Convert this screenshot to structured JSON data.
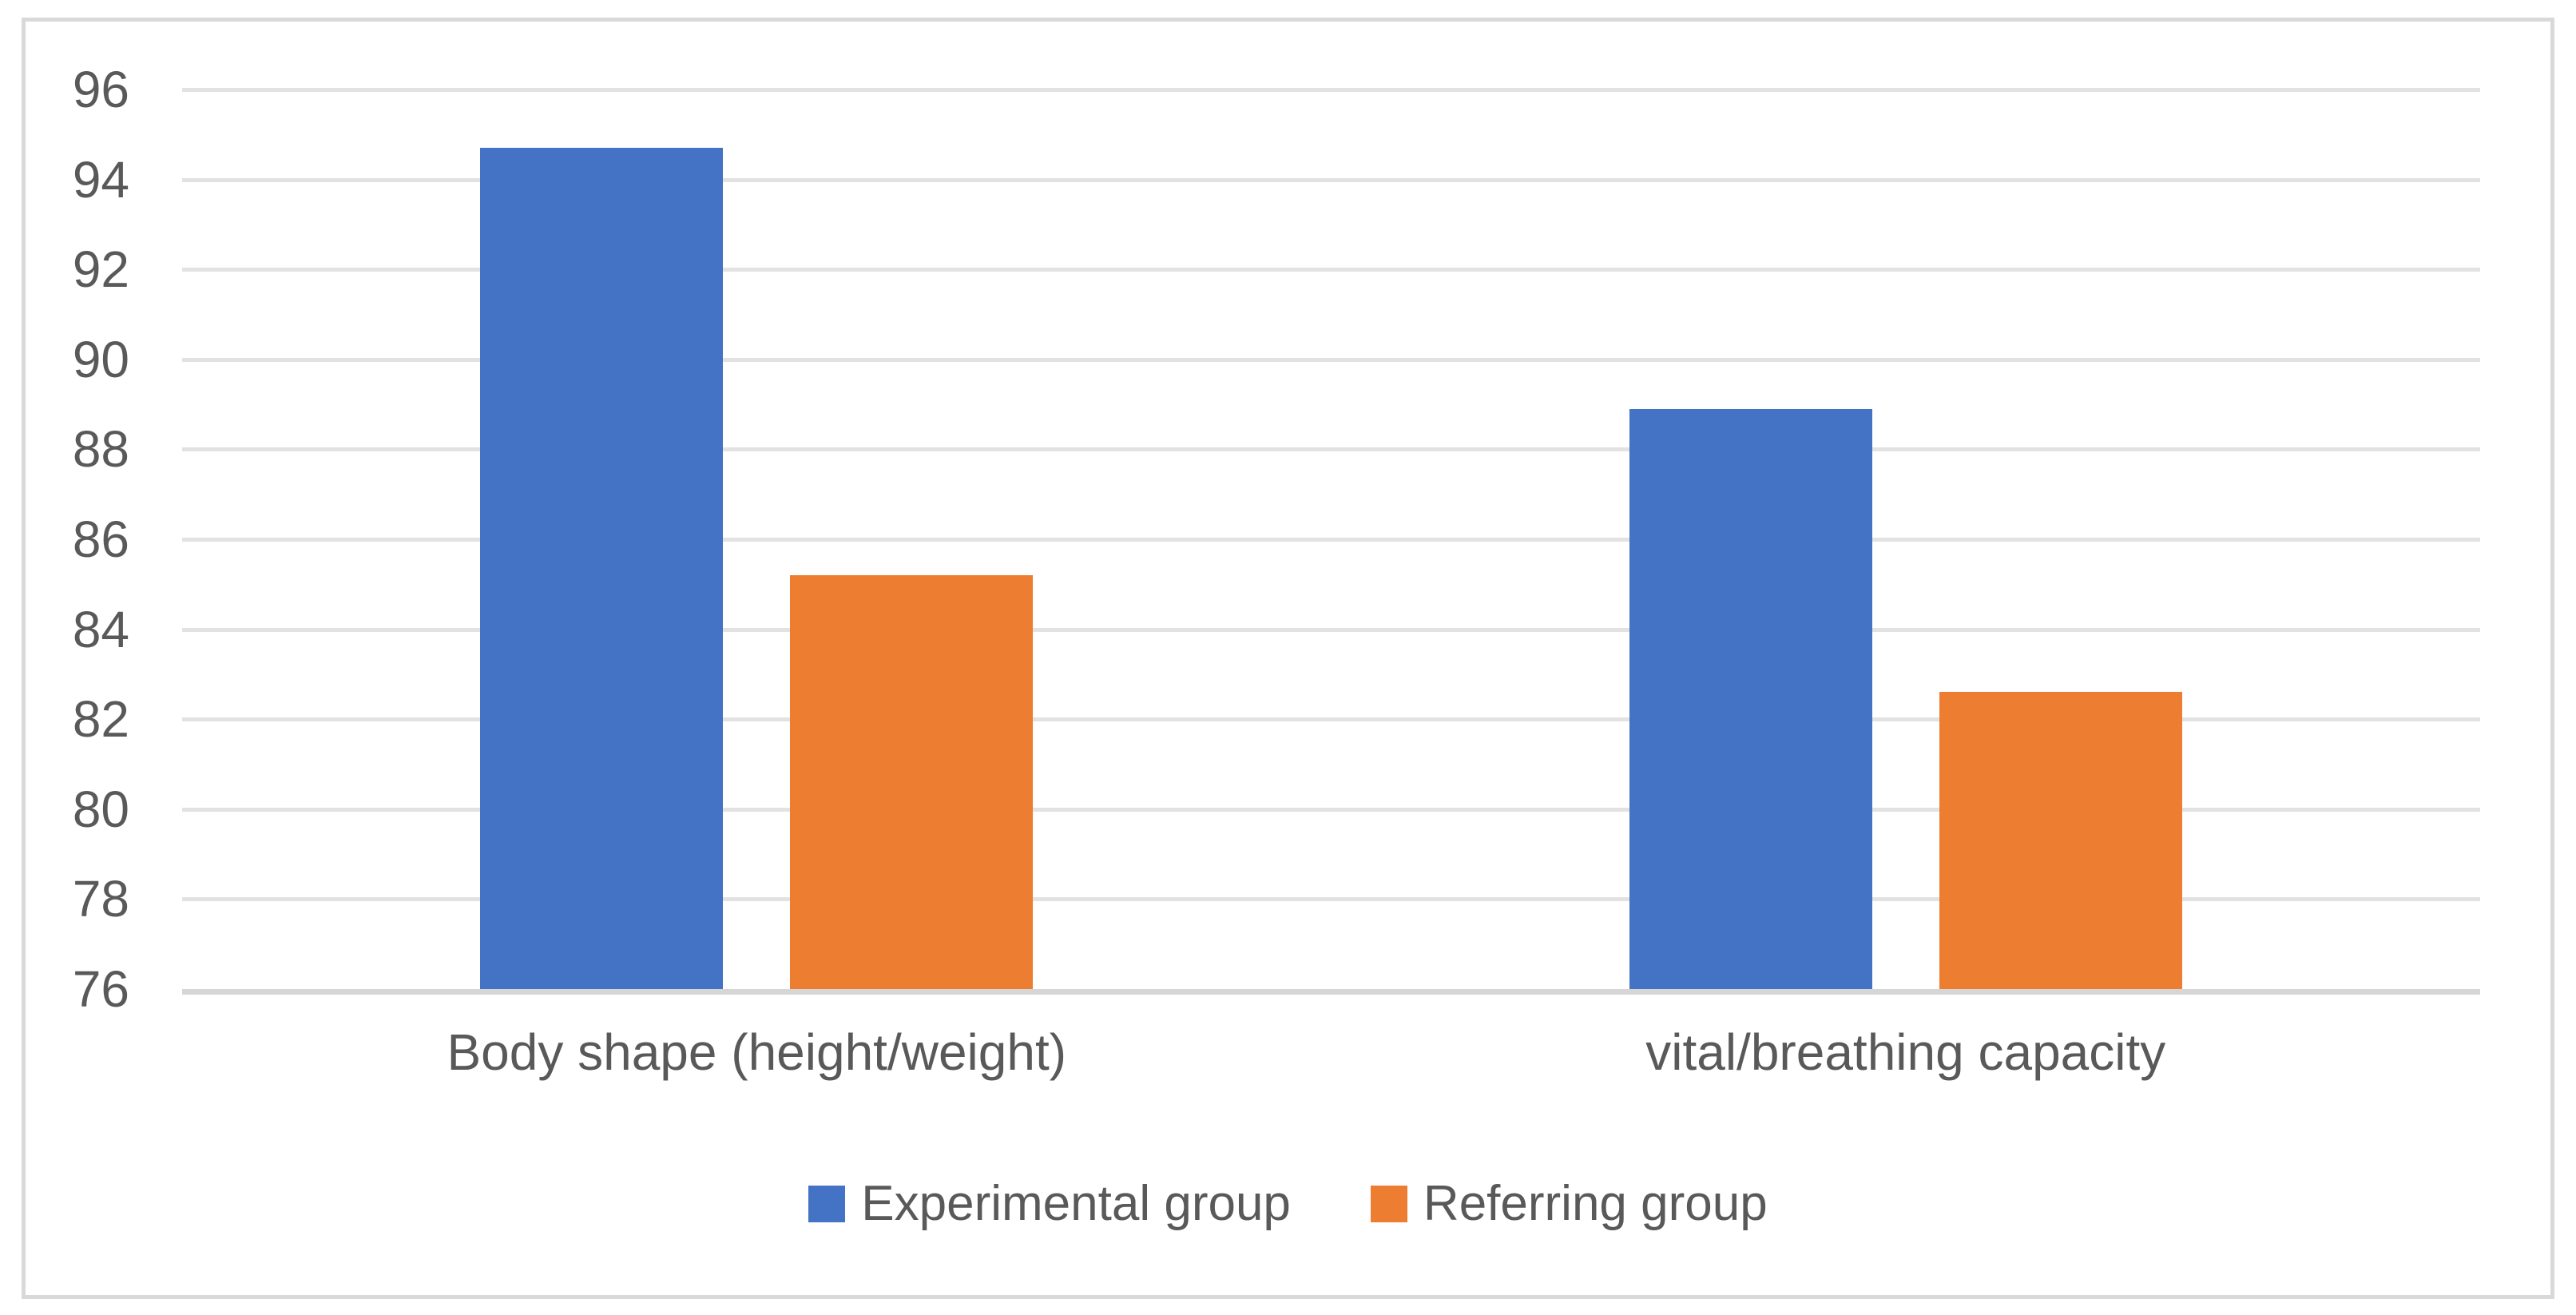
{
  "chart_data": {
    "type": "bar",
    "categories": [
      "Body shape (height/weight)",
      "vital/breathing capacity"
    ],
    "series": [
      {
        "name": "Experimental group",
        "color": "#4472C4",
        "values": [
          94.7,
          88.9
        ]
      },
      {
        "name": "Referring group",
        "color": "#ED7D31",
        "values": [
          85.2,
          82.6
        ]
      }
    ],
    "ylim": [
      76,
      96
    ],
    "yticks": [
      96,
      94,
      92,
      90,
      88,
      86,
      84,
      82,
      80,
      78,
      76
    ],
    "grid": "horizontal",
    "legend_position": "bottom"
  },
  "colors": {
    "axis_text": "#595959",
    "gridline": "#E2E2E2",
    "axis_line": "#D6D6D6",
    "frame_border": "#D9D9D9",
    "background": "#FFFFFF"
  }
}
